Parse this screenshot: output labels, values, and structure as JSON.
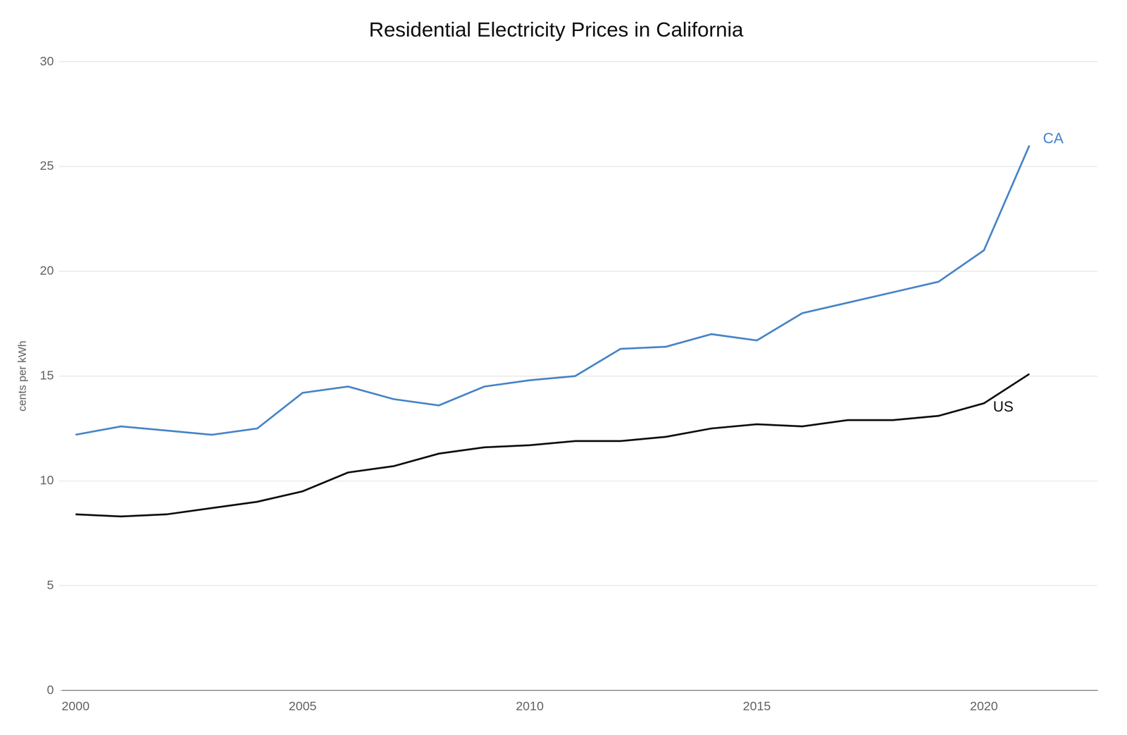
{
  "chart_data": {
    "type": "line",
    "title": "Residential Electricity Prices in California",
    "ylabel": "cents per kWh",
    "x": [
      2000,
      2001,
      2002,
      2003,
      2004,
      2005,
      2006,
      2007,
      2008,
      2009,
      2010,
      2011,
      2012,
      2013,
      2014,
      2015,
      2016,
      2017,
      2018,
      2019,
      2020,
      2021
    ],
    "series": [
      {
        "color": "#4a86c8",
        "values": [
          12.2,
          12.6,
          12.4,
          12.2,
          12.5,
          14.2,
          14.5,
          13.9,
          13.6,
          14.5,
          14.8,
          15.0,
          16.3,
          16.4,
          17.0,
          16.7,
          18.0,
          18.5,
          19.0,
          19.5,
          21.0,
          26.0
        ]
      },
      {
        "color": "#111111",
        "values": [
          8.4,
          8.3,
          8.4,
          8.7,
          9.0,
          9.5,
          10.4,
          10.7,
          11.3,
          11.6,
          11.7,
          11.9,
          11.9,
          12.1,
          12.5,
          12.7,
          12.6,
          12.9,
          12.9,
          13.1,
          13.7,
          15.1
        ]
      }
    ],
    "xlim": [
      1999.7,
      2022.5
    ],
    "xticks": [
      2000,
      2005,
      2010,
      2015,
      2020
    ],
    "ylim": [
      0,
      30
    ],
    "yticks": [
      0,
      5,
      10,
      15,
      20,
      25,
      30
    ],
    "grid": "y",
    "annotations": [
      {
        "text": "CA",
        "x": 2021.3,
        "y": 26.3,
        "color": "#4a86c8"
      },
      {
        "text": "US",
        "x": 2020.2,
        "y": 13.5,
        "color": "#111111"
      }
    ]
  }
}
